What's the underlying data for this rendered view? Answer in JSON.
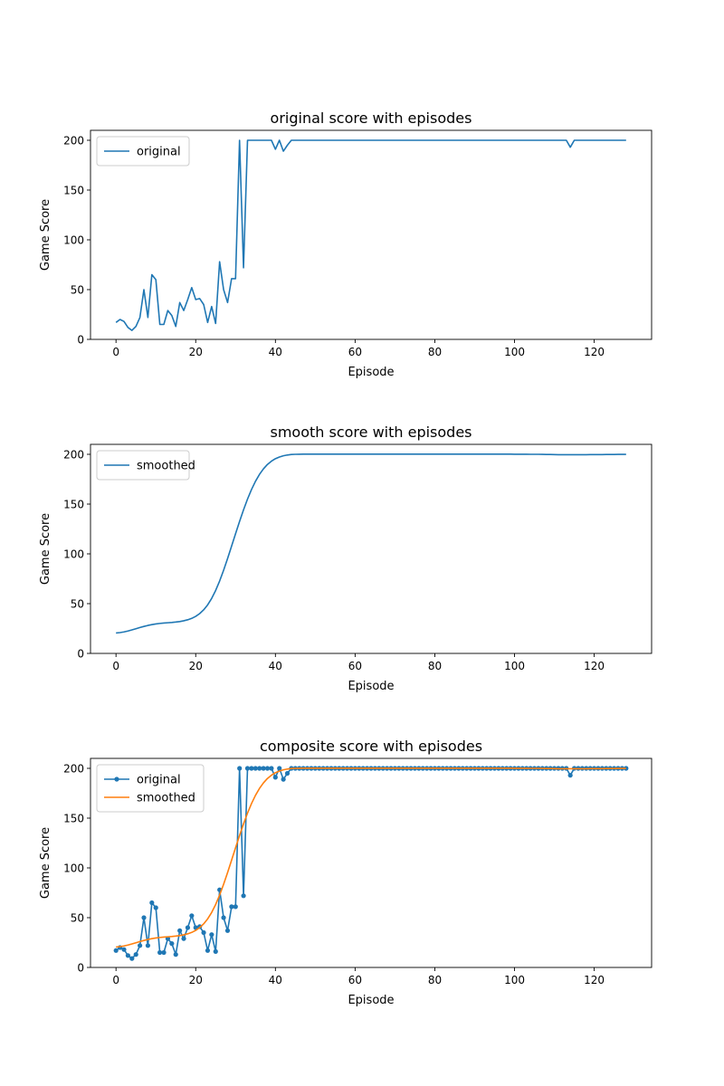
{
  "chart_data": [
    {
      "type": "line",
      "title": "original score with episodes",
      "xlabel": "Episode",
      "ylabel": "Game Score",
      "xlim": [
        -6.4,
        134.4
      ],
      "ylim": [
        0,
        210
      ],
      "xticks": [
        0,
        20,
        40,
        60,
        80,
        100,
        120
      ],
      "yticks": [
        0,
        50,
        100,
        150,
        200
      ],
      "legend": "upper-left",
      "grid": false,
      "series": [
        {
          "name": "original",
          "color": "#1f77b4",
          "marker": "none",
          "values": "original"
        }
      ]
    },
    {
      "type": "line",
      "title": "smooth score with episodes",
      "xlabel": "Episode",
      "ylabel": "Game Score",
      "xlim": [
        -6.4,
        134.4
      ],
      "ylim": [
        0,
        210
      ],
      "xticks": [
        0,
        20,
        40,
        60,
        80,
        100,
        120
      ],
      "yticks": [
        0,
        50,
        100,
        150,
        200
      ],
      "legend": "upper-left",
      "grid": false,
      "series": [
        {
          "name": "smoothed",
          "color": "#1f77b4",
          "marker": "none",
          "values": "smoothed"
        }
      ]
    },
    {
      "type": "line",
      "title": "composite score with episodes",
      "xlabel": "Episode",
      "ylabel": "Game Score",
      "xlim": [
        -6.4,
        134.4
      ],
      "ylim": [
        0,
        210
      ],
      "xticks": [
        0,
        20,
        40,
        60,
        80,
        100,
        120
      ],
      "yticks": [
        0,
        50,
        100,
        150,
        200
      ],
      "legend": "upper-left",
      "grid": false,
      "series": [
        {
          "name": "original",
          "color": "#1f77b4",
          "marker": "dot",
          "values": "original"
        },
        {
          "name": "smoothed",
          "color": "#ff7f0e",
          "marker": "none",
          "values": "smoothed"
        }
      ]
    }
  ],
  "data_series": {
    "episodes_x": [
      0,
      1,
      2,
      3,
      4,
      5,
      6,
      7,
      8,
      9,
      10,
      11,
      12,
      13,
      14,
      15,
      16,
      17,
      18,
      19,
      20,
      21,
      22,
      23,
      24,
      25,
      26,
      27,
      28,
      29,
      30,
      31,
      32,
      33,
      34,
      35,
      36,
      37,
      38,
      39,
      40,
      41,
      42,
      43,
      44,
      45,
      46,
      47,
      48,
      49,
      50,
      51,
      52,
      53,
      54,
      55,
      56,
      57,
      58,
      59,
      60,
      61,
      62,
      63,
      64,
      65,
      66,
      67,
      68,
      69,
      70,
      71,
      72,
      73,
      74,
      75,
      76,
      77,
      78,
      79,
      80,
      81,
      82,
      83,
      84,
      85,
      86,
      87,
      88,
      89,
      90,
      91,
      92,
      93,
      94,
      95,
      96,
      97,
      98,
      99,
      100,
      101,
      102,
      103,
      104,
      105,
      106,
      107,
      108,
      109,
      110,
      111,
      112,
      113,
      114,
      115,
      116,
      117,
      118,
      119,
      120,
      121,
      122,
      123,
      124,
      125,
      126,
      127,
      128
    ],
    "original": [
      17,
      20,
      18,
      12,
      9,
      13,
      22,
      50,
      22,
      65,
      60,
      15,
      15,
      29,
      24,
      13,
      37,
      29,
      40,
      52,
      40,
      41,
      35,
      17,
      33,
      16,
      78,
      50,
      37,
      61,
      61,
      200,
      72,
      200,
      200,
      200,
      200,
      200,
      200,
      200,
      191,
      200,
      189,
      195,
      200,
      200,
      200,
      200,
      200,
      200,
      200,
      200,
      200,
      200,
      200,
      200,
      200,
      200,
      200,
      200,
      200,
      200,
      200,
      200,
      200,
      200,
      200,
      200,
      200,
      200,
      200,
      200,
      200,
      200,
      200,
      200,
      200,
      200,
      200,
      200,
      200,
      200,
      200,
      200,
      200,
      200,
      200,
      200,
      200,
      200,
      200,
      200,
      200,
      200,
      200,
      200,
      200,
      200,
      200,
      200,
      200,
      200,
      200,
      200,
      200,
      200,
      200,
      200,
      200,
      200,
      200,
      200,
      200,
      200,
      193,
      200,
      200,
      200,
      200,
      200,
      200,
      200,
      200,
      200,
      200,
      200,
      200,
      200,
      200
    ],
    "smoothed": [
      20.5,
      20.9,
      21.6,
      22.5,
      23.6,
      24.8,
      26.0,
      27.1,
      28.1,
      28.9,
      29.6,
      30.1,
      30.5,
      30.8,
      31.1,
      31.5,
      32.0,
      32.8,
      33.8,
      35.2,
      37.2,
      40.0,
      43.8,
      48.8,
      55.2,
      63.2,
      72.7,
      83.5,
      95.3,
      107.7,
      120.2,
      132.5,
      144.2,
      155.0,
      164.6,
      172.9,
      179.8,
      185.4,
      189.8,
      193.1,
      195.6,
      197.3,
      198.5,
      199.3,
      199.8,
      200.0,
      200.1,
      200.2,
      200.2,
      200.2,
      200.2,
      200.2,
      200.2,
      200.2,
      200.2,
      200.2,
      200.2,
      200.2,
      200.2,
      200.2,
      200.2,
      200.2,
      200.2,
      200.2,
      200.2,
      200.2,
      200.2,
      200.2,
      200.2,
      200.2,
      200.2,
      200.2,
      200.2,
      200.2,
      200.2,
      200.2,
      200.2,
      200.2,
      200.2,
      200.2,
      200.2,
      200.2,
      200.2,
      200.2,
      200.2,
      200.2,
      200.2,
      200.2,
      200.2,
      200.2,
      200.2,
      200.2,
      200.2,
      200.2,
      200.2,
      200.2,
      200.2,
      200.2,
      200.2,
      200.2,
      200.1,
      200.1,
      200.1,
      200.1,
      200.0,
      200.0,
      200.0,
      199.9,
      199.8,
      199.8,
      199.7,
      199.6,
      199.6,
      199.6,
      199.6,
      199.6,
      199.6,
      199.6,
      199.6,
      199.7,
      199.7,
      199.7,
      199.7,
      199.8,
      199.8,
      199.8,
      199.9,
      199.9,
      199.9
    ]
  }
}
